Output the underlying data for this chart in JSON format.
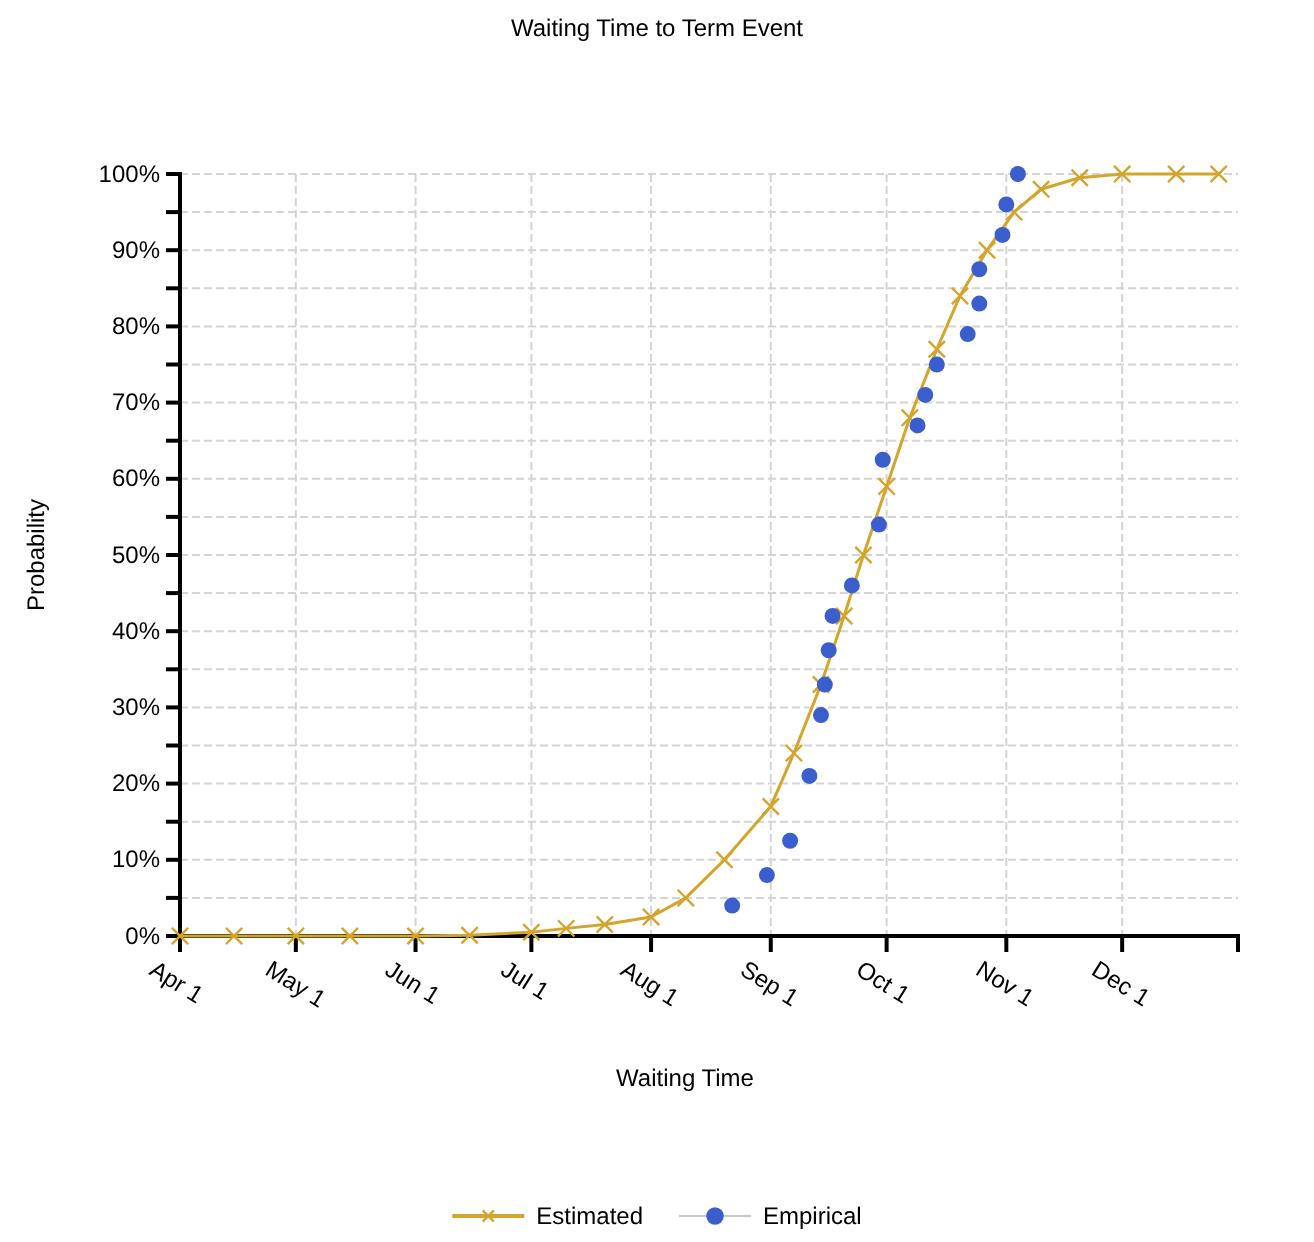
{
  "chart_data": {
    "type": "line",
    "title": "Waiting Time to Term Event",
    "xlabel": "Waiting Time",
    "ylabel": "Probability",
    "xlim": [
      "--04-01",
      "--12-31"
    ],
    "xticks": [
      {
        "value": "--04-01",
        "label": "Apr 1"
      },
      {
        "value": "--05-01",
        "label": "May 1"
      },
      {
        "value": "--06-01",
        "label": "Jun 1"
      },
      {
        "value": "--07-01",
        "label": "Jul 1"
      },
      {
        "value": "--08-01",
        "label": "Aug 1"
      },
      {
        "value": "--09-01",
        "label": "Sep 1"
      },
      {
        "value": "--10-01",
        "label": "Oct 1"
      },
      {
        "value": "--11-01",
        "label": "Nov 1"
      },
      {
        "value": "--12-01",
        "label": "Dec 1"
      }
    ],
    "ylim": [
      0,
      100
    ],
    "yticks": [
      {
        "value": 0,
        "label": "0%"
      },
      {
        "value": 5,
        "label": null
      },
      {
        "value": 10,
        "label": "10%"
      },
      {
        "value": 15,
        "label": null
      },
      {
        "value": 20,
        "label": "20%"
      },
      {
        "value": 25,
        "label": null
      },
      {
        "value": 30,
        "label": "30%"
      },
      {
        "value": 35,
        "label": null
      },
      {
        "value": 40,
        "label": "40%"
      },
      {
        "value": 45,
        "label": null
      },
      {
        "value": 50,
        "label": "50%"
      },
      {
        "value": 55,
        "label": null
      },
      {
        "value": 60,
        "label": "60%"
      },
      {
        "value": 65,
        "label": null
      },
      {
        "value": 70,
        "label": "70%"
      },
      {
        "value": 75,
        "label": null
      },
      {
        "value": 80,
        "label": "80%"
      },
      {
        "value": 85,
        "label": null
      },
      {
        "value": 90,
        "label": "90%"
      },
      {
        "value": 95,
        "label": null
      },
      {
        "value": 100,
        "label": "100%"
      }
    ],
    "grid": true,
    "legend": "bottom",
    "series": [
      {
        "name": "Estimated",
        "marker": "cross",
        "color": "#d4a52c",
        "x": [
          "--04-01",
          "--04-15",
          "--05-01",
          "--05-15",
          "--06-01",
          "--06-15",
          "--07-01",
          "--07-10",
          "--07-20",
          "--08-01",
          "--08-10",
          "--08-20",
          "--09-01",
          "--09-07",
          "--09-14",
          "--09-20",
          "--09-25",
          "--10-01",
          "--10-07",
          "--10-14",
          "--10-20",
          "--10-27",
          "--11-03",
          "--11-10",
          "--11-20",
          "--12-01",
          "--12-15",
          "--12-26"
        ],
        "values": [
          0,
          0,
          0,
          0,
          0,
          0.1,
          0.5,
          1,
          1.5,
          2.5,
          5,
          10,
          17,
          24,
          33,
          42,
          50,
          59,
          68,
          77,
          84,
          90,
          95,
          98,
          99.5,
          100,
          100,
          100
        ]
      },
      {
        "name": "Empirical",
        "type": "scatter",
        "marker": "circle",
        "color": "#3a5fcd",
        "x": [
          "--08-22",
          "--08-31",
          "--09-06",
          "--09-11",
          "--09-14",
          "--09-15",
          "--09-16",
          "--09-17",
          "--09-22",
          "--09-29",
          "--09-30",
          "--10-09",
          "--10-11",
          "--10-14",
          "--10-22",
          "--10-25",
          "--10-25",
          "--10-31",
          "--11-01",
          "--11-04"
        ],
        "values": [
          4,
          8,
          12.5,
          21,
          29,
          33,
          37.5,
          42,
          46,
          54,
          62.5,
          67,
          71,
          75,
          79,
          83,
          87.5,
          92,
          96,
          100
        ]
      }
    ]
  }
}
